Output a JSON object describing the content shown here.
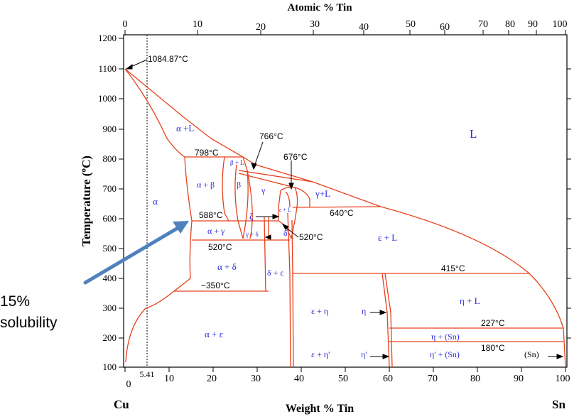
{
  "top_axis": {
    "title": "Atomic % Tin",
    "ticks": [
      "0",
      "10",
      "20",
      "30",
      "40",
      "50",
      "60",
      "70",
      "80",
      "90",
      "100"
    ]
  },
  "left_axis": {
    "title": "Temperature (ºC)",
    "ticks": [
      "1200",
      "1100",
      "1000",
      "900",
      "800",
      "700",
      "600",
      "500",
      "400",
      "300",
      "200",
      "100"
    ]
  },
  "bottom_axis": {
    "title": "Weight % Tin",
    "ticks": [
      "0",
      "10",
      "20",
      "30",
      "40",
      "50",
      "60",
      "70",
      "80",
      "90",
      "100"
    ],
    "extra_tick": "5.41",
    "left_element": "Cu",
    "right_element": "Sn"
  },
  "temperatures": {
    "t1084": "1084.87°C",
    "t798": "798°C",
    "t766": "766°C",
    "t676": "676°C",
    "t640": "640°C",
    "t588": "588°C",
    "t520a": "520°C",
    "t520b": "520°C",
    "t415": "415°C",
    "t350": "~350°C",
    "t227": "227°C",
    "t180": "180°C"
  },
  "phases": {
    "liquid": "L",
    "alpha_L": "α +L",
    "alpha": "α",
    "alpha_beta": "α + β",
    "beta": "β",
    "beta_L": "β + L",
    "gamma": "γ",
    "gamma_L": "γ+L",
    "zeta": "ζ",
    "alpha_gamma": "α + γ",
    "gamma_delta": "γ + δ",
    "delta": "δ",
    "eps_L": "ε + L",
    "alpha_delta": "α + δ",
    "delta_eps": "δ + ε",
    "eps_eta": "ε + η",
    "eta": "η",
    "eta_L": "η + L",
    "eta_Sn": "η + (Sn)",
    "alpha_eps": "α + ε",
    "eps_etap": "ε + η'",
    "etap": "η'",
    "etap_Sn": "η' + (Sn)",
    "Sn": "(Sn)"
  },
  "callout": {
    "line1": "15%",
    "line2": "solubility"
  },
  "colors": {
    "phase_line": "#e8401c",
    "phase_label": "#2b2bd9",
    "arrow": "#4f81bd",
    "axis": "#000000"
  }
}
